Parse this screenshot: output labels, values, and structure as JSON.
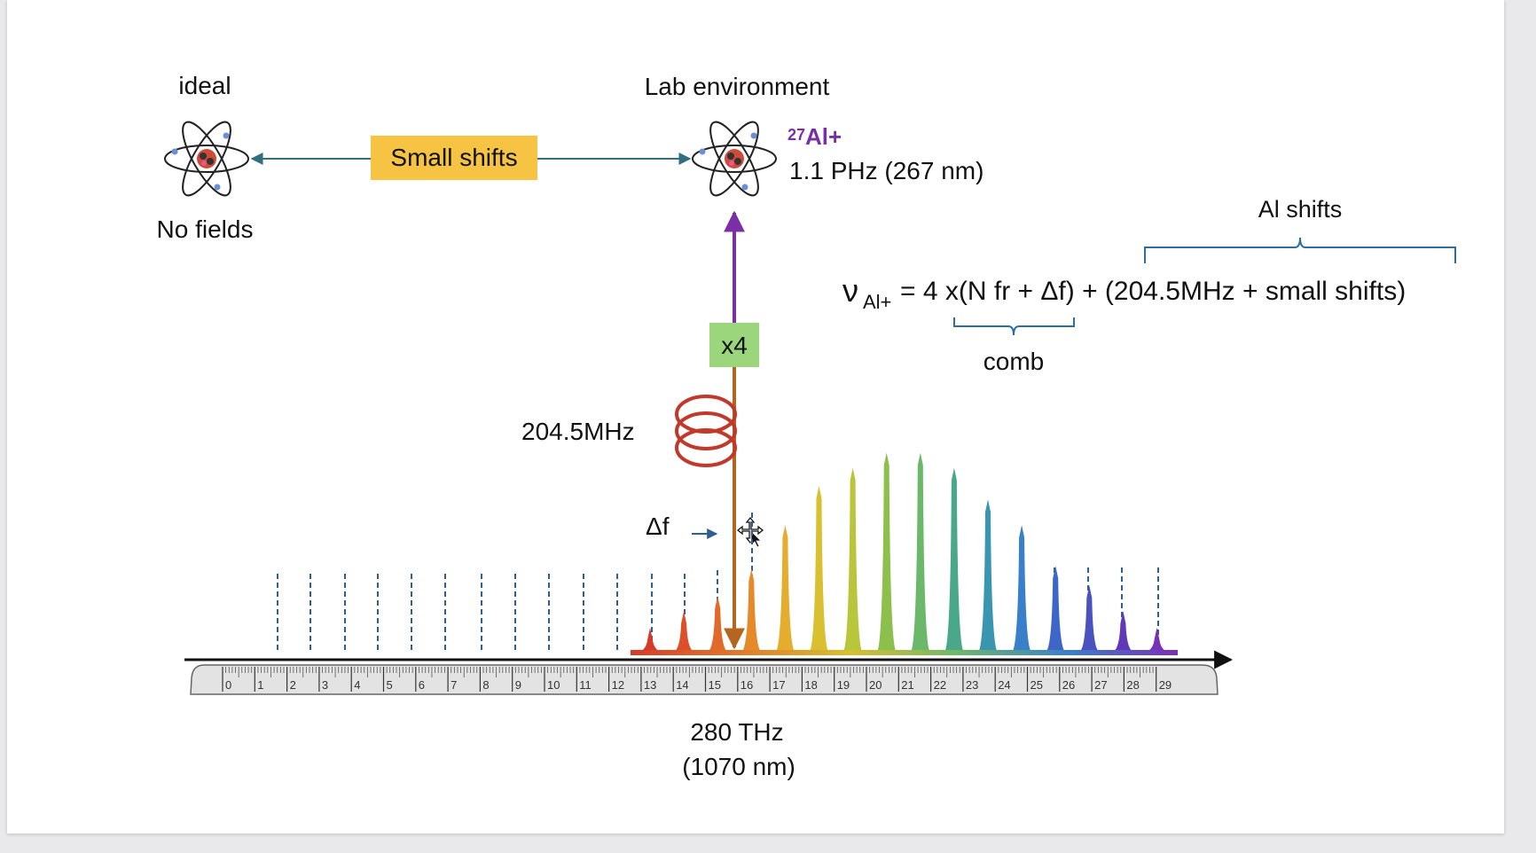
{
  "labels": {
    "ideal": "ideal",
    "no_fields": "No fields",
    "lab_environment": "Lab environment",
    "small_shifts": "Small shifts",
    "isotope_mass": "27",
    "isotope_symbol": "Al+",
    "frequency": "1.1 PHz (267 nm)",
    "multiplier": "x4",
    "aom_freq": "204.5MHz",
    "delta_f": "Δf",
    "carrier_freq": "280 THz",
    "carrier_wavelength": "(1070 nm)"
  },
  "equation": {
    "nu": "ν",
    "nu_sub": "Al+",
    "rhs": "=  4 x(N fr + Δf) + (204.5MHz + small shifts)",
    "comb_label": "comb",
    "al_shifts_label": "Al shifts"
  },
  "ruler": {
    "ticks": [
      "0",
      "1",
      "2",
      "3",
      "4",
      "5",
      "6",
      "7",
      "8",
      "9",
      "10",
      "11",
      "12",
      "13",
      "14",
      "15",
      "16",
      "17",
      "18",
      "19",
      "20",
      "21",
      "22",
      "23",
      "24",
      "25",
      "26",
      "27",
      "28",
      "29"
    ]
  },
  "comb": {
    "peak_heights": [
      0.16,
      0.27,
      0.37,
      0.55,
      0.84,
      1.1,
      1.22,
      1.32,
      1.32,
      1.22,
      1.01,
      0.84,
      0.57,
      0.44,
      0.27,
      0.16
    ]
  },
  "colors": {
    "arrow_teal": "#2f6f80",
    "label_box_yellow": "#f6c342",
    "multiplier_box_green": "#9bd67d",
    "purple": "#7b2fa6",
    "brown": "#b5651d",
    "coil_red": "#c0392b",
    "brace_blue": "#2e6da0",
    "dashed_blue": "#2d5f93"
  }
}
